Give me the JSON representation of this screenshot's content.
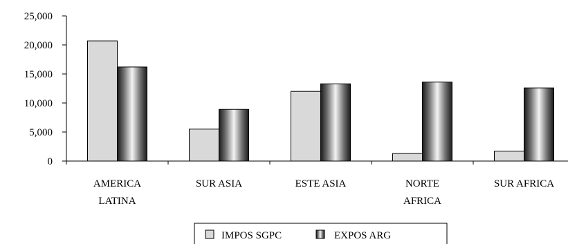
{
  "chart_data": {
    "type": "bar",
    "title": "",
    "xlabel": "",
    "ylabel": "",
    "categories": [
      [
        "AMERICA",
        "LATINA"
      ],
      [
        "SUR ASIA"
      ],
      [
        "ESTE ASIA"
      ],
      [
        "NORTE",
        "AFRICA"
      ],
      [
        "SUR AFRICA"
      ]
    ],
    "series": [
      {
        "name": "IMPOS SGPC",
        "values": [
          20700,
          5500,
          12000,
          1300,
          1700
        ],
        "color": "#d9d9d9"
      },
      {
        "name": "EXPOS ARG",
        "values": [
          16200,
          8900,
          13300,
          13600,
          12600
        ],
        "color": "#7f7f7f"
      }
    ],
    "ylim": [
      0,
      25000
    ],
    "yticks": [
      "0",
      "5,000",
      "10,000",
      "15,000",
      "20,000",
      "25,000"
    ],
    "ytick_values": [
      0,
      5000,
      10000,
      15000,
      20000,
      25000
    ],
    "grid": false,
    "legend_position": "bottom"
  }
}
